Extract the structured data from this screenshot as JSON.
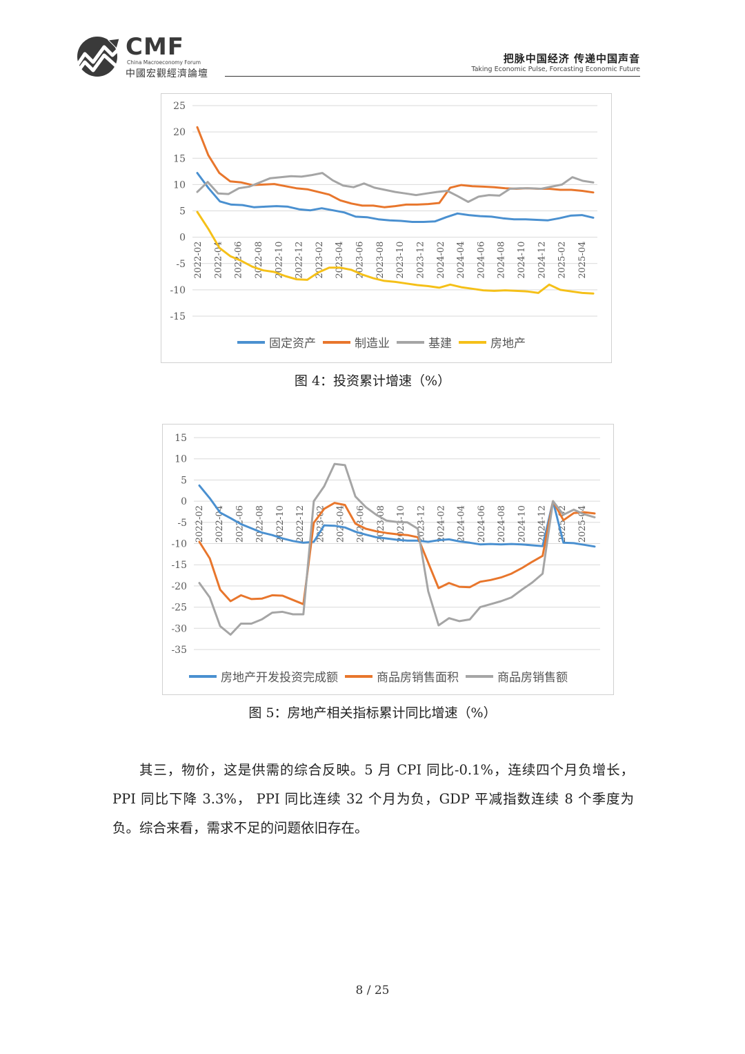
{
  "header": {
    "logo_text": "CMF",
    "logo_en": "China Macroeconomy Forum",
    "logo_cn": "中國宏觀經濟論壇",
    "slogan_cn": "把脉中国经济  传递中国声音",
    "slogan_en": "Taking Economic Pulse, Forcasting Economic Future"
  },
  "chart_data": [
    {
      "type": "line",
      "title": "",
      "caption": "图 4：投资累计增速（%）",
      "ylim": [
        -15,
        25
      ],
      "yticks": [
        "25",
        "20",
        "15",
        "10",
        "5",
        "0",
        "-5",
        "-10",
        "-15"
      ],
      "x_labels": [
        "2022-02",
        "2022-04",
        "2022-06",
        "2022-08",
        "2022-10",
        "2022-12",
        "2023-02",
        "2023-04",
        "2023-06",
        "2023-08",
        "2023-10",
        "2023-12",
        "2024-02",
        "2024-04",
        "2024-06",
        "2024-08",
        "2024-10",
        "2024-12",
        "2025-02",
        "2025-04"
      ],
      "grid": true,
      "legend_placement": "bottom",
      "series": [
        {
          "name": "固定资产",
          "color": "#4a90d0",
          "values": [
            12.2,
            9.3,
            6.8,
            6.2,
            6.1,
            5.7,
            5.8,
            5.9,
            5.8,
            5.3,
            5.1,
            5.5,
            5.1,
            4.7,
            3.9,
            3.8,
            3.4,
            3.2,
            3.1,
            2.9,
            2.9,
            3.0,
            3.8,
            4.5,
            4.2,
            4.0,
            3.9,
            3.6,
            3.4,
            3.4,
            3.3,
            3.2,
            3.6,
            4.1,
            4.2,
            3.7
          ]
        },
        {
          "name": "制造业",
          "color": "#e8762c",
          "values": [
            20.9,
            15.6,
            12.2,
            10.6,
            10.4,
            9.9,
            10.0,
            10.1,
            9.7,
            9.3,
            9.1,
            8.6,
            8.1,
            7.0,
            6.4,
            6.0,
            6.0,
            5.7,
            5.9,
            6.2,
            6.2,
            6.3,
            6.5,
            9.4,
            9.9,
            9.7,
            9.6,
            9.5,
            9.3,
            9.2,
            9.3,
            9.2,
            9.2,
            9.0,
            9.0,
            8.8,
            8.5
          ]
        },
        {
          "name": "基建",
          "color": "#a5a5a5",
          "values": [
            8.6,
            10.5,
            8.3,
            8.2,
            9.3,
            9.6,
            10.4,
            11.2,
            11.4,
            11.6,
            11.5,
            11.8,
            12.2,
            10.8,
            9.8,
            9.5,
            10.2,
            9.4,
            9.0,
            8.6,
            8.3,
            8.0,
            8.3,
            8.6,
            8.8,
            7.8,
            6.7,
            7.7,
            8.0,
            7.9,
            9.2,
            9.3,
            9.3,
            9.2,
            9.6,
            10.0,
            11.4,
            10.7,
            10.4
          ]
        },
        {
          "name": "房地产",
          "color": "#f5c018",
          "values": [
            4.8,
            1.6,
            -2.0,
            -3.6,
            -4.5,
            -5.6,
            -6.3,
            -6.6,
            -7.4,
            -8.0,
            -8.1,
            -6.7,
            -5.8,
            -5.8,
            -6.2,
            -7.1,
            -7.8,
            -8.3,
            -8.5,
            -8.8,
            -9.1,
            -9.3,
            -9.6,
            -9.0,
            -9.5,
            -9.8,
            -10.1,
            -10.2,
            -10.1,
            -10.2,
            -10.3,
            -10.6,
            -9.0,
            -10.0,
            -10.3,
            -10.6,
            -10.7
          ]
        }
      ]
    },
    {
      "type": "line",
      "title": "",
      "caption": "图 5：房地产相关指标累计同比增速（%）",
      "ylim": [
        -35,
        15
      ],
      "yticks": [
        "15",
        "10",
        "5",
        "0",
        "-5",
        "-10",
        "-15",
        "-20",
        "-25",
        "-30",
        "-35"
      ],
      "x_labels": [
        "2022-02",
        "2022-04",
        "2022-06",
        "2022-08",
        "2022-10",
        "2022-12",
        "2023-02",
        "2023-04",
        "2023-06",
        "2023-08",
        "2023-10",
        "2023-12",
        "2024-02",
        "2024-04",
        "2024-06",
        "2024-08",
        "2024-10",
        "2024-12",
        "2025-02",
        "2025-04"
      ],
      "grid": true,
      "legend_placement": "bottom",
      "series": [
        {
          "name": "房地产开发投资完成额",
          "color": "#4a90d0",
          "values": [
            3.7,
            0.7,
            -2.7,
            -4.0,
            -5.4,
            -6.4,
            -7.4,
            -8.0,
            -8.8,
            -9.4,
            -9.8,
            -9.6,
            -5.7,
            -5.8,
            -6.2,
            -7.2,
            -7.9,
            -8.5,
            -8.8,
            -9.1,
            -9.3,
            -9.3,
            -9.6,
            -9.2,
            -9.0,
            -9.5,
            -9.8,
            -10.2,
            -10.1,
            -10.2,
            -10.1,
            -10.2,
            -10.4,
            -10.6,
            0,
            -9.8,
            -9.9,
            -10.3,
            -10.7
          ]
        },
        {
          "name": "商品房销售面积",
          "color": "#e8762c",
          "values": [
            -9.6,
            -13.5,
            -20.9,
            -23.6,
            -22.2,
            -23.1,
            -23.0,
            -22.2,
            -22.3,
            -23.3,
            -24.3,
            -5.1,
            -1.8,
            -0.4,
            -0.9,
            -5.3,
            -6.5,
            -7.1,
            -7.5,
            -7.8,
            -8.0,
            -8.5,
            -14.5,
            -20.5,
            -19.3,
            -20.2,
            -20.3,
            -19.0,
            -18.6,
            -18.0,
            -17.1,
            -15.8,
            -14.3,
            -12.9,
            0,
            -4.5,
            -2.8,
            -2.6,
            -2.9
          ]
        },
        {
          "name": "商品房销售额",
          "color": "#a5a5a5",
          "values": [
            -19.3,
            -22.7,
            -29.5,
            -31.5,
            -28.9,
            -28.9,
            -27.9,
            -26.3,
            -26.1,
            -26.7,
            -26.7,
            0,
            3.5,
            8.8,
            8.5,
            1.1,
            -1.4,
            -3.2,
            -4.6,
            -4.9,
            -5.0,
            -6.5,
            -21.2,
            -29.3,
            -27.6,
            -28.3,
            -27.9,
            -25.0,
            -24.3,
            -23.6,
            -22.7,
            -20.9,
            -19.2,
            -17.1,
            0,
            -3.2,
            -2.0,
            -3.1,
            -3.8
          ]
        }
      ]
    }
  ],
  "captions": {
    "fig4": "图 4：投资累计增速（%）",
    "fig5": "图 5：房地产相关指标累计同比增速（%）"
  },
  "body_text": "其三，物价，这是供需的综合反映。5 月 CPI 同比-0.1%，连续四个月负增长，PPI 同比下降 3.3%， PPI 同比连续 32 个月为负，GDP 平减指数连续 8 个季度为负。综合来看，需求不足的问题依旧存在。",
  "page_number": "8 / 25"
}
